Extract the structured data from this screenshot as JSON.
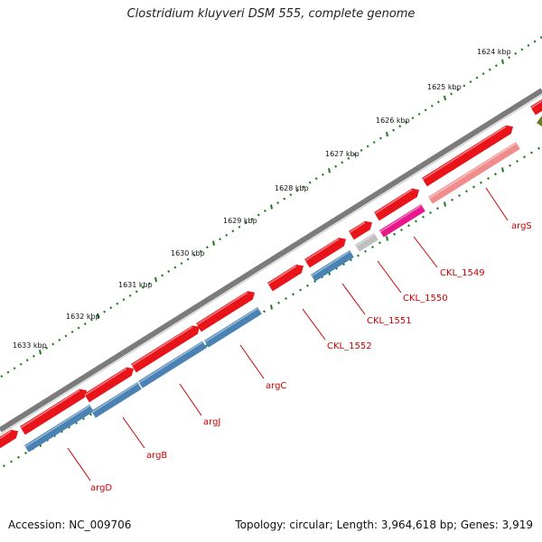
{
  "title": "Clostridium kluyveri DSM 555, complete genome",
  "footer": {
    "accession": "Accession: NC_009706",
    "summary": "Topology: circular; Length: 3,964,618 bp; Genes: 3,919"
  },
  "colors": {
    "backbone": "#7b7b7b",
    "gene_forward": "#e8141a",
    "cds": "#4a82b4",
    "rna": "#f08c8c",
    "pseudo": "#bfbfbf",
    "misc": "#e8188c",
    "tick": "#1a7a1a",
    "label": "#cc0000",
    "olive": "#6b7a1f"
  },
  "ruler": [
    {
      "label": "1624 kbp"
    },
    {
      "label": "1625 kbp"
    },
    {
      "label": "1626 kbp"
    },
    {
      "label": "1627 kbp"
    },
    {
      "label": "1628 kbp"
    },
    {
      "label": "1629 kbp"
    },
    {
      "label": "1630 kbp"
    },
    {
      "label": "1631 kbp"
    },
    {
      "label": "1632 kbp"
    },
    {
      "label": "1633 kbp"
    }
  ],
  "gene_labels": [
    {
      "label": "argS"
    },
    {
      "label": "CKL_1549"
    },
    {
      "label": "CKL_1550"
    },
    {
      "label": "CKL_1551"
    },
    {
      "label": "CKL_1552"
    },
    {
      "label": "argC"
    },
    {
      "label": "argJ"
    },
    {
      "label": "argB"
    },
    {
      "label": "argD"
    }
  ]
}
